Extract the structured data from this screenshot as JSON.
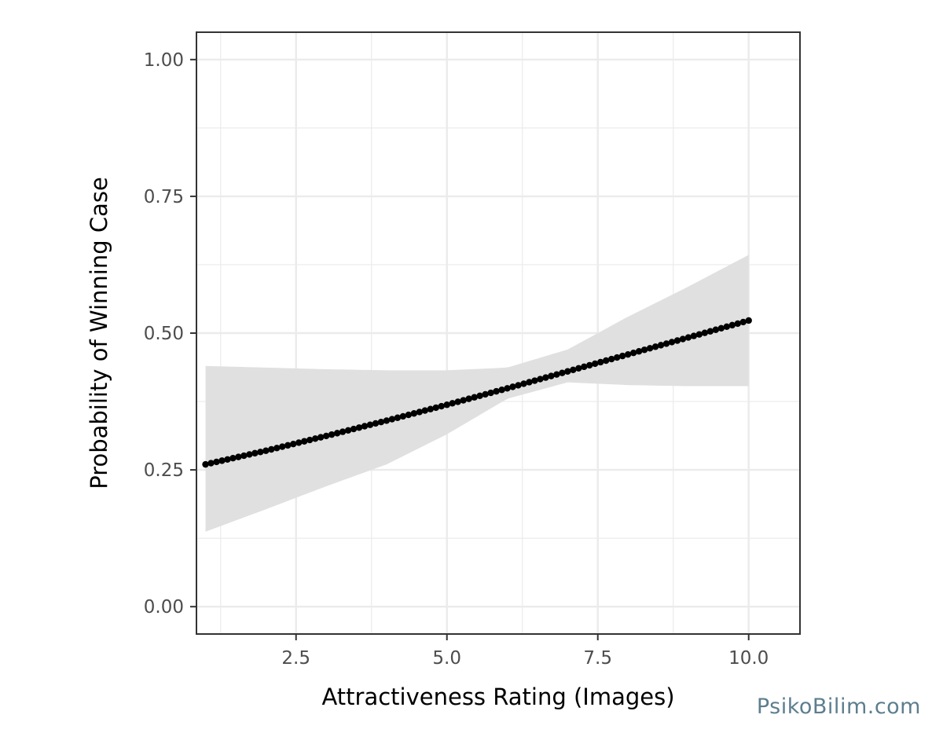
{
  "chart_data": {
    "type": "line",
    "xlabel": "Attractiveness Rating (Images)",
    "ylabel": "Probability of Winning Case",
    "xlim": [
      0.85,
      10.85
    ],
    "ylim": [
      -0.05,
      1.05
    ],
    "x_ticks": [
      2.5,
      5.0,
      7.5,
      10.0
    ],
    "x_tick_labels": [
      "2.5",
      "5.0",
      "7.5",
      "10.0"
    ],
    "y_ticks": [
      0.0,
      0.25,
      0.5,
      0.75,
      1.0
    ],
    "y_tick_labels": [
      "0.00",
      "0.25",
      "0.50",
      "0.75",
      "1.00"
    ],
    "grid": true,
    "fit_line": {
      "x_start": 1.0,
      "x_end": 10.0,
      "n_points": 100,
      "x": [
        1.0,
        2.0,
        3.0,
        4.0,
        5.0,
        6.0,
        7.0,
        8.0,
        9.0,
        10.0
      ],
      "y": [
        0.26,
        0.285,
        0.312,
        0.34,
        0.369,
        0.399,
        0.43,
        0.461,
        0.492,
        0.523
      ]
    },
    "confidence_band": {
      "x": [
        1.0,
        2.0,
        3.0,
        4.0,
        5.0,
        6.0,
        7.0,
        8.0,
        9.0,
        10.0
      ],
      "lower": [
        0.137,
        0.178,
        0.22,
        0.26,
        0.315,
        0.38,
        0.41,
        0.405,
        0.403,
        0.403
      ],
      "upper": [
        0.44,
        0.437,
        0.434,
        0.432,
        0.432,
        0.437,
        0.47,
        0.53,
        0.585,
        0.643
      ]
    },
    "colors": {
      "line": "#000000",
      "band": "#e0e0e0",
      "grid": "#ebebeb",
      "panel_border": "#333333"
    }
  },
  "watermark": "PsikoBilim.com"
}
